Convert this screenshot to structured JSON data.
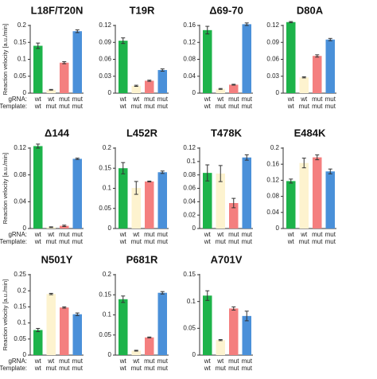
{
  "figure": {
    "ylabel": "Reaction velocity [a.u./min]",
    "row_labels": [
      "gRNA:",
      "Template:"
    ]
  },
  "chart_data": [
    {
      "type": "bar",
      "title": "L18F/T20N",
      "categories": [
        [
          "wt",
          "wt"
        ],
        [
          "wt",
          "mut"
        ],
        [
          "mut",
          "mut"
        ],
        [
          "mut",
          "mut"
        ]
      ],
      "values": [
        0.14,
        0.01,
        0.09,
        0.183
      ],
      "errors": [
        0.008,
        0.001,
        0.003,
        0.004
      ],
      "colors": [
        "#1db34a",
        "#fdf3cf",
        "#f47f7f",
        "#4a90d9"
      ],
      "ylim": [
        0,
        0.2
      ],
      "yticks": [
        0,
        0.05,
        0.1,
        0.15,
        0.2
      ],
      "ytick_labels": [
        "0",
        "0.05",
        "0.1",
        "0.15",
        "0.2"
      ]
    },
    {
      "type": "bar",
      "title": "T19R",
      "categories": [
        [
          "wt",
          "wt"
        ],
        [
          "wt",
          "mut"
        ],
        [
          "mut",
          "mut"
        ],
        [
          "mut",
          "mut"
        ]
      ],
      "values": [
        0.093,
        0.013,
        0.022,
        0.041
      ],
      "errors": [
        0.005,
        0.001,
        0.001,
        0.002
      ],
      "colors": [
        "#1db34a",
        "#fdf3cf",
        "#f47f7f",
        "#4a90d9"
      ],
      "ylim": [
        0,
        0.12
      ],
      "yticks": [
        0,
        0.03,
        0.06,
        0.09,
        0.12
      ],
      "ytick_labels": [
        "0",
        "0.03",
        "0.06",
        "0.09",
        "0.12"
      ]
    },
    {
      "type": "bar",
      "title": "Δ69-70",
      "categories": [
        [
          "wt",
          "wt"
        ],
        [
          "wt",
          "mut"
        ],
        [
          "mut",
          "mut"
        ],
        [
          "mut",
          "mut"
        ]
      ],
      "values": [
        0.149,
        0.01,
        0.02,
        0.163
      ],
      "errors": [
        0.009,
        0.001,
        0.001,
        0.003
      ],
      "colors": [
        "#1db34a",
        "#fdf3cf",
        "#f47f7f",
        "#4a90d9"
      ],
      "ylim": [
        0,
        0.16
      ],
      "yticks": [
        0,
        0.04,
        0.08,
        0.12,
        0.16
      ],
      "ytick_labels": [
        "0",
        "0.04",
        "0.08",
        "0.12",
        "0.16"
      ]
    },
    {
      "type": "bar",
      "title": "D80A",
      "categories": [
        [
          "wt",
          "wt"
        ],
        [
          "wt",
          "mut"
        ],
        [
          "mut",
          "mut"
        ],
        [
          "mut",
          "mut"
        ]
      ],
      "values": [
        0.126,
        0.028,
        0.066,
        0.095
      ],
      "errors": [
        0.001,
        0.001,
        0.002,
        0.002
      ],
      "colors": [
        "#1db34a",
        "#fdf3cf",
        "#f47f7f",
        "#4a90d9"
      ],
      "ylim": [
        0,
        0.12
      ],
      "yticks": [
        0,
        0.03,
        0.06,
        0.09,
        0.12
      ],
      "ytick_labels": [
        "0",
        "0.03",
        "0.06",
        "0.09",
        "0.12"
      ]
    },
    {
      "type": "bar",
      "title": "Δ144",
      "categories": [
        [
          "wt",
          "wt"
        ],
        [
          "wt",
          "mut"
        ],
        [
          "mut",
          "mut"
        ],
        [
          "mut",
          "mut"
        ]
      ],
      "values": [
        0.123,
        0.002,
        0.004,
        0.104
      ],
      "errors": [
        0.003,
        0.0005,
        0.001,
        0.001
      ],
      "colors": [
        "#1db34a",
        "#fdf3cf",
        "#f47f7f",
        "#4a90d9"
      ],
      "ylim": [
        0,
        0.12
      ],
      "yticks": [
        0,
        0.04,
        0.08,
        0.12
      ],
      "ytick_labels": [
        "0",
        "0.04",
        "0.08",
        "0.12"
      ]
    },
    {
      "type": "bar",
      "title": "L452R",
      "categories": [
        [
          "wt",
          "wt"
        ],
        [
          "wt",
          "mut"
        ],
        [
          "mut",
          "mut"
        ],
        [
          "mut",
          "mut"
        ]
      ],
      "values": [
        0.15,
        0.101,
        0.117,
        0.14
      ],
      "errors": [
        0.014,
        0.016,
        0.001,
        0.003
      ],
      "colors": [
        "#1db34a",
        "#fdf3cf",
        "#f47f7f",
        "#4a90d9"
      ],
      "ylim": [
        0,
        0.2
      ],
      "yticks": [
        0,
        0.05,
        0.1,
        0.15,
        0.2
      ],
      "ytick_labels": [
        "0",
        "0.05",
        "0.1",
        "0.15",
        "0.2"
      ]
    },
    {
      "type": "bar",
      "title": "T478K",
      "categories": [
        [
          "wt",
          "wt"
        ],
        [
          "wt",
          "mut"
        ],
        [
          "mut",
          "mut"
        ],
        [
          "mut",
          "mut"
        ]
      ],
      "values": [
        0.083,
        0.082,
        0.038,
        0.106
      ],
      "errors": [
        0.012,
        0.012,
        0.007,
        0.004
      ],
      "colors": [
        "#1db34a",
        "#fdf3cf",
        "#f47f7f",
        "#4a90d9"
      ],
      "ylim": [
        0,
        0.12
      ],
      "yticks": [
        0,
        0.02,
        0.04,
        0.06,
        0.08,
        0.1,
        0.12
      ],
      "ytick_labels": [
        "0",
        "0.02",
        "0.04",
        "0.06",
        "0.08",
        "0.1",
        "0.12"
      ]
    },
    {
      "type": "bar",
      "title": "E484K",
      "categories": [
        [
          "wt",
          "wt"
        ],
        [
          "wt",
          "mut"
        ],
        [
          "mut",
          "mut"
        ],
        [
          "mut",
          "mut"
        ]
      ],
      "values": [
        0.118,
        0.163,
        0.177,
        0.142
      ],
      "errors": [
        0.005,
        0.012,
        0.006,
        0.006
      ],
      "colors": [
        "#1db34a",
        "#fdf3cf",
        "#f47f7f",
        "#4a90d9"
      ],
      "ylim": [
        0,
        0.2
      ],
      "yticks": [
        0,
        0.04,
        0.08,
        0.12,
        0.16,
        0.2
      ],
      "ytick_labels": [
        "0",
        "0.04",
        "0.08",
        "0.12",
        "0.16",
        "0.2"
      ]
    },
    {
      "type": "bar",
      "title": "N501Y",
      "categories": [
        [
          "wt",
          "wt"
        ],
        [
          "wt",
          "mut"
        ],
        [
          "mut",
          "mut"
        ],
        [
          "mut",
          "mut"
        ]
      ],
      "values": [
        0.078,
        0.19,
        0.148,
        0.127
      ],
      "errors": [
        0.005,
        0.002,
        0.002,
        0.004
      ],
      "colors": [
        "#1db34a",
        "#fdf3cf",
        "#f47f7f",
        "#4a90d9"
      ],
      "ylim": [
        0,
        0.25
      ],
      "yticks": [
        0,
        0.05,
        0.1,
        0.15,
        0.2,
        0.25
      ],
      "ytick_labels": [
        "0",
        "0.05",
        "0.1",
        "0.15",
        "0.2",
        "0.25"
      ]
    },
    {
      "type": "bar",
      "title": "P681R",
      "categories": [
        [
          "wt",
          "wt"
        ],
        [
          "wt",
          "mut"
        ],
        [
          "mut",
          "mut"
        ],
        [
          "mut",
          "mut"
        ]
      ],
      "values": [
        0.139,
        0.011,
        0.044,
        0.155
      ],
      "errors": [
        0.008,
        0.001,
        0.001,
        0.003
      ],
      "colors": [
        "#1db34a",
        "#fdf3cf",
        "#f47f7f",
        "#4a90d9"
      ],
      "ylim": [
        0,
        0.2
      ],
      "yticks": [
        0,
        0.05,
        0.1,
        0.15,
        0.2
      ],
      "ytick_labels": [
        "0",
        "0.05",
        "0.1",
        "0.15",
        "0.2"
      ]
    },
    {
      "type": "bar",
      "title": "A701V",
      "categories": [
        [
          "wt",
          "wt"
        ],
        [
          "wt",
          "mut"
        ],
        [
          "mut",
          "mut"
        ],
        [
          "mut",
          "mut"
        ]
      ],
      "values": [
        0.111,
        0.028,
        0.087,
        0.073
      ],
      "errors": [
        0.009,
        0.001,
        0.003,
        0.009
      ],
      "colors": [
        "#1db34a",
        "#fdf3cf",
        "#f47f7f",
        "#4a90d9"
      ],
      "ylim": [
        0,
        0.15
      ],
      "yticks": [
        0,
        0.05,
        0.1,
        0.15
      ],
      "ytick_labels": [
        "0",
        "0.05",
        "0.1",
        "0.15"
      ]
    }
  ]
}
